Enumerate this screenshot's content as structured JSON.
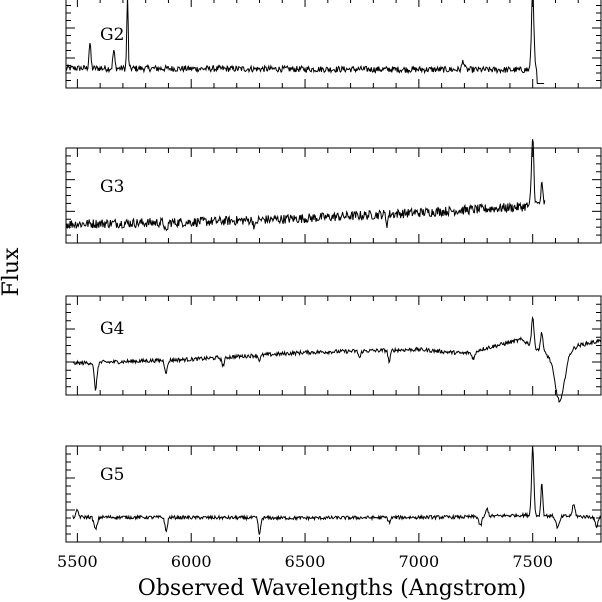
{
  "chart_data": {
    "type": "line",
    "xlabel": "Observed Wavelengths (Angstrom)",
    "ylabel": "Flux",
    "xlim": [
      5450,
      7800
    ],
    "x_ticks": [
      5500,
      6000,
      6500,
      7000,
      7500
    ],
    "x_tick_labels": [
      "5500",
      "6000",
      "6500",
      "7000",
      "7500"
    ],
    "panels": [
      {
        "label": "G2",
        "x_end": 7550,
        "base": [
          [
            5450,
            0.22
          ],
          [
            7550,
            0.2
          ]
        ],
        "noise": 0.035,
        "features": [
          {
            "x": 5555,
            "a": 0.28,
            "w": 4
          },
          {
            "x": 5660,
            "a": 0.2,
            "w": 4
          },
          {
            "x": 5720,
            "a": 0.8,
            "w": 3
          },
          {
            "x": 7195,
            "a": 0.1,
            "w": 5
          },
          {
            "x": 7500,
            "a": 0.93,
            "w": 5
          }
        ],
        "tail_drop": {
          "x": 7520,
          "y": 0.05
        }
      },
      {
        "label": "G3",
        "x_end": 7555,
        "base": [
          [
            5450,
            0.2
          ],
          [
            6000,
            0.22
          ],
          [
            6500,
            0.26
          ],
          [
            7000,
            0.32
          ],
          [
            7450,
            0.38
          ],
          [
            7555,
            0.42
          ]
        ],
        "noise": 0.05,
        "features": [
          {
            "x": 5890,
            "a": -0.12,
            "w": 5
          },
          {
            "x": 6280,
            "a": -0.08,
            "w": 5
          },
          {
            "x": 6860,
            "a": -0.1,
            "w": 4
          },
          {
            "x": 7500,
            "a": 0.72,
            "w": 5
          },
          {
            "x": 7540,
            "a": 0.2,
            "w": 4
          }
        ]
      },
      {
        "label": "G4",
        "x_end": 7800,
        "base": [
          [
            5480,
            0.32
          ],
          [
            6000,
            0.36
          ],
          [
            6500,
            0.43
          ],
          [
            7000,
            0.46
          ],
          [
            7200,
            0.42
          ],
          [
            7450,
            0.56
          ],
          [
            7600,
            0.36
          ],
          [
            7700,
            0.5
          ],
          [
            7800,
            0.55
          ]
        ],
        "noise": 0.02,
        "features": [
          {
            "x": 5580,
            "a": -0.27,
            "w": 6
          },
          {
            "x": 5890,
            "a": -0.12,
            "w": 6
          },
          {
            "x": 6140,
            "a": -0.08,
            "w": 6
          },
          {
            "x": 6300,
            "a": -0.05,
            "w": 5
          },
          {
            "x": 6740,
            "a": -0.07,
            "w": 5
          },
          {
            "x": 6870,
            "a": -0.12,
            "w": 5
          },
          {
            "x": 7240,
            "a": -0.07,
            "w": 8
          },
          {
            "x": 7500,
            "a": 0.3,
            "w": 5
          },
          {
            "x": 7540,
            "a": 0.2,
            "w": 5
          },
          {
            "x": 7620,
            "a": -0.45,
            "w": 20
          }
        ]
      },
      {
        "label": "G5",
        "x_end": 7800,
        "base": [
          [
            5480,
            0.26
          ],
          [
            6500,
            0.25
          ],
          [
            7200,
            0.26
          ],
          [
            7450,
            0.28
          ],
          [
            7800,
            0.26
          ]
        ],
        "noise": 0.018,
        "features": [
          {
            "x": 5500,
            "a": 0.07,
            "w": 5
          },
          {
            "x": 5580,
            "a": -0.13,
            "w": 7
          },
          {
            "x": 5890,
            "a": -0.15,
            "w": 5
          },
          {
            "x": 6300,
            "a": -0.18,
            "w": 5
          },
          {
            "x": 6870,
            "a": -0.05,
            "w": 5
          },
          {
            "x": 7270,
            "a": -0.1,
            "w": 6
          },
          {
            "x": 7300,
            "a": 0.08,
            "w": 5
          },
          {
            "x": 7500,
            "a": 0.72,
            "w": 5
          },
          {
            "x": 7540,
            "a": 0.35,
            "w": 4
          },
          {
            "x": 7610,
            "a": -0.12,
            "w": 8
          },
          {
            "x": 7680,
            "a": 0.12,
            "w": 6
          },
          {
            "x": 7780,
            "a": -0.1,
            "w": 6
          }
        ]
      }
    ]
  }
}
